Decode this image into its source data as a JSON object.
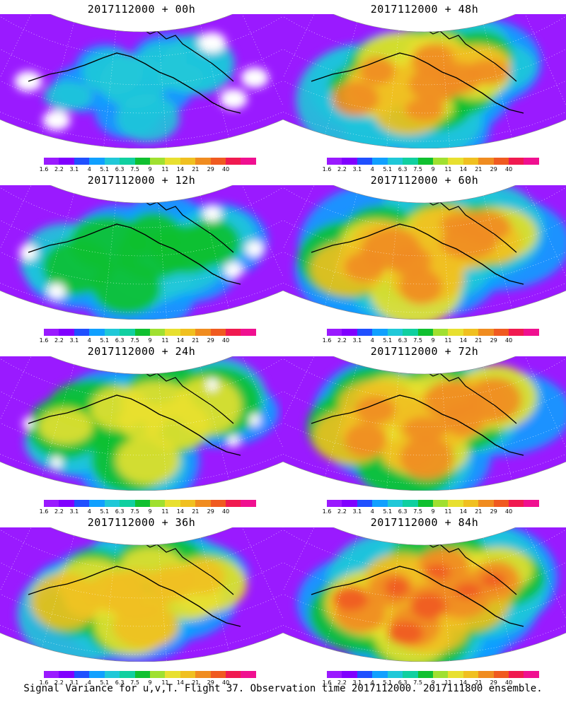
{
  "footer": "Signal Variance for u,v,T. Flight 37. Observation time 2017112000. 2017111800 ensemble.",
  "colorbar": {
    "colors": [
      "#9a1aff",
      "#8000ff",
      "#2050ff",
      "#10a0ff",
      "#20c8d8",
      "#10d0a0",
      "#10c030",
      "#a0e030",
      "#e8e030",
      "#f0c020",
      "#f08c20",
      "#f05a20",
      "#f01a50",
      "#f01090"
    ],
    "labels": [
      "1.6",
      "2.2",
      "3.1",
      "4",
      "5.1",
      "6.3",
      "7.5",
      "9",
      "11",
      "14",
      "21",
      "29",
      "40"
    ]
  },
  "panels": [
    {
      "title": "2017112000 + 00h",
      "intensity": 0.15
    },
    {
      "title": "2017112000 + 48h",
      "intensity": 0.72
    },
    {
      "title": "2017112000 + 12h",
      "intensity": 0.38
    },
    {
      "title": "2017112000 + 60h",
      "intensity": 0.78
    },
    {
      "title": "2017112000 + 24h",
      "intensity": 0.55
    },
    {
      "title": "2017112000 + 72h",
      "intensity": 0.84
    },
    {
      "title": "2017112000 + 36h",
      "intensity": 0.66
    },
    {
      "title": "2017112000 + 84h",
      "intensity": 0.9
    }
  ]
}
